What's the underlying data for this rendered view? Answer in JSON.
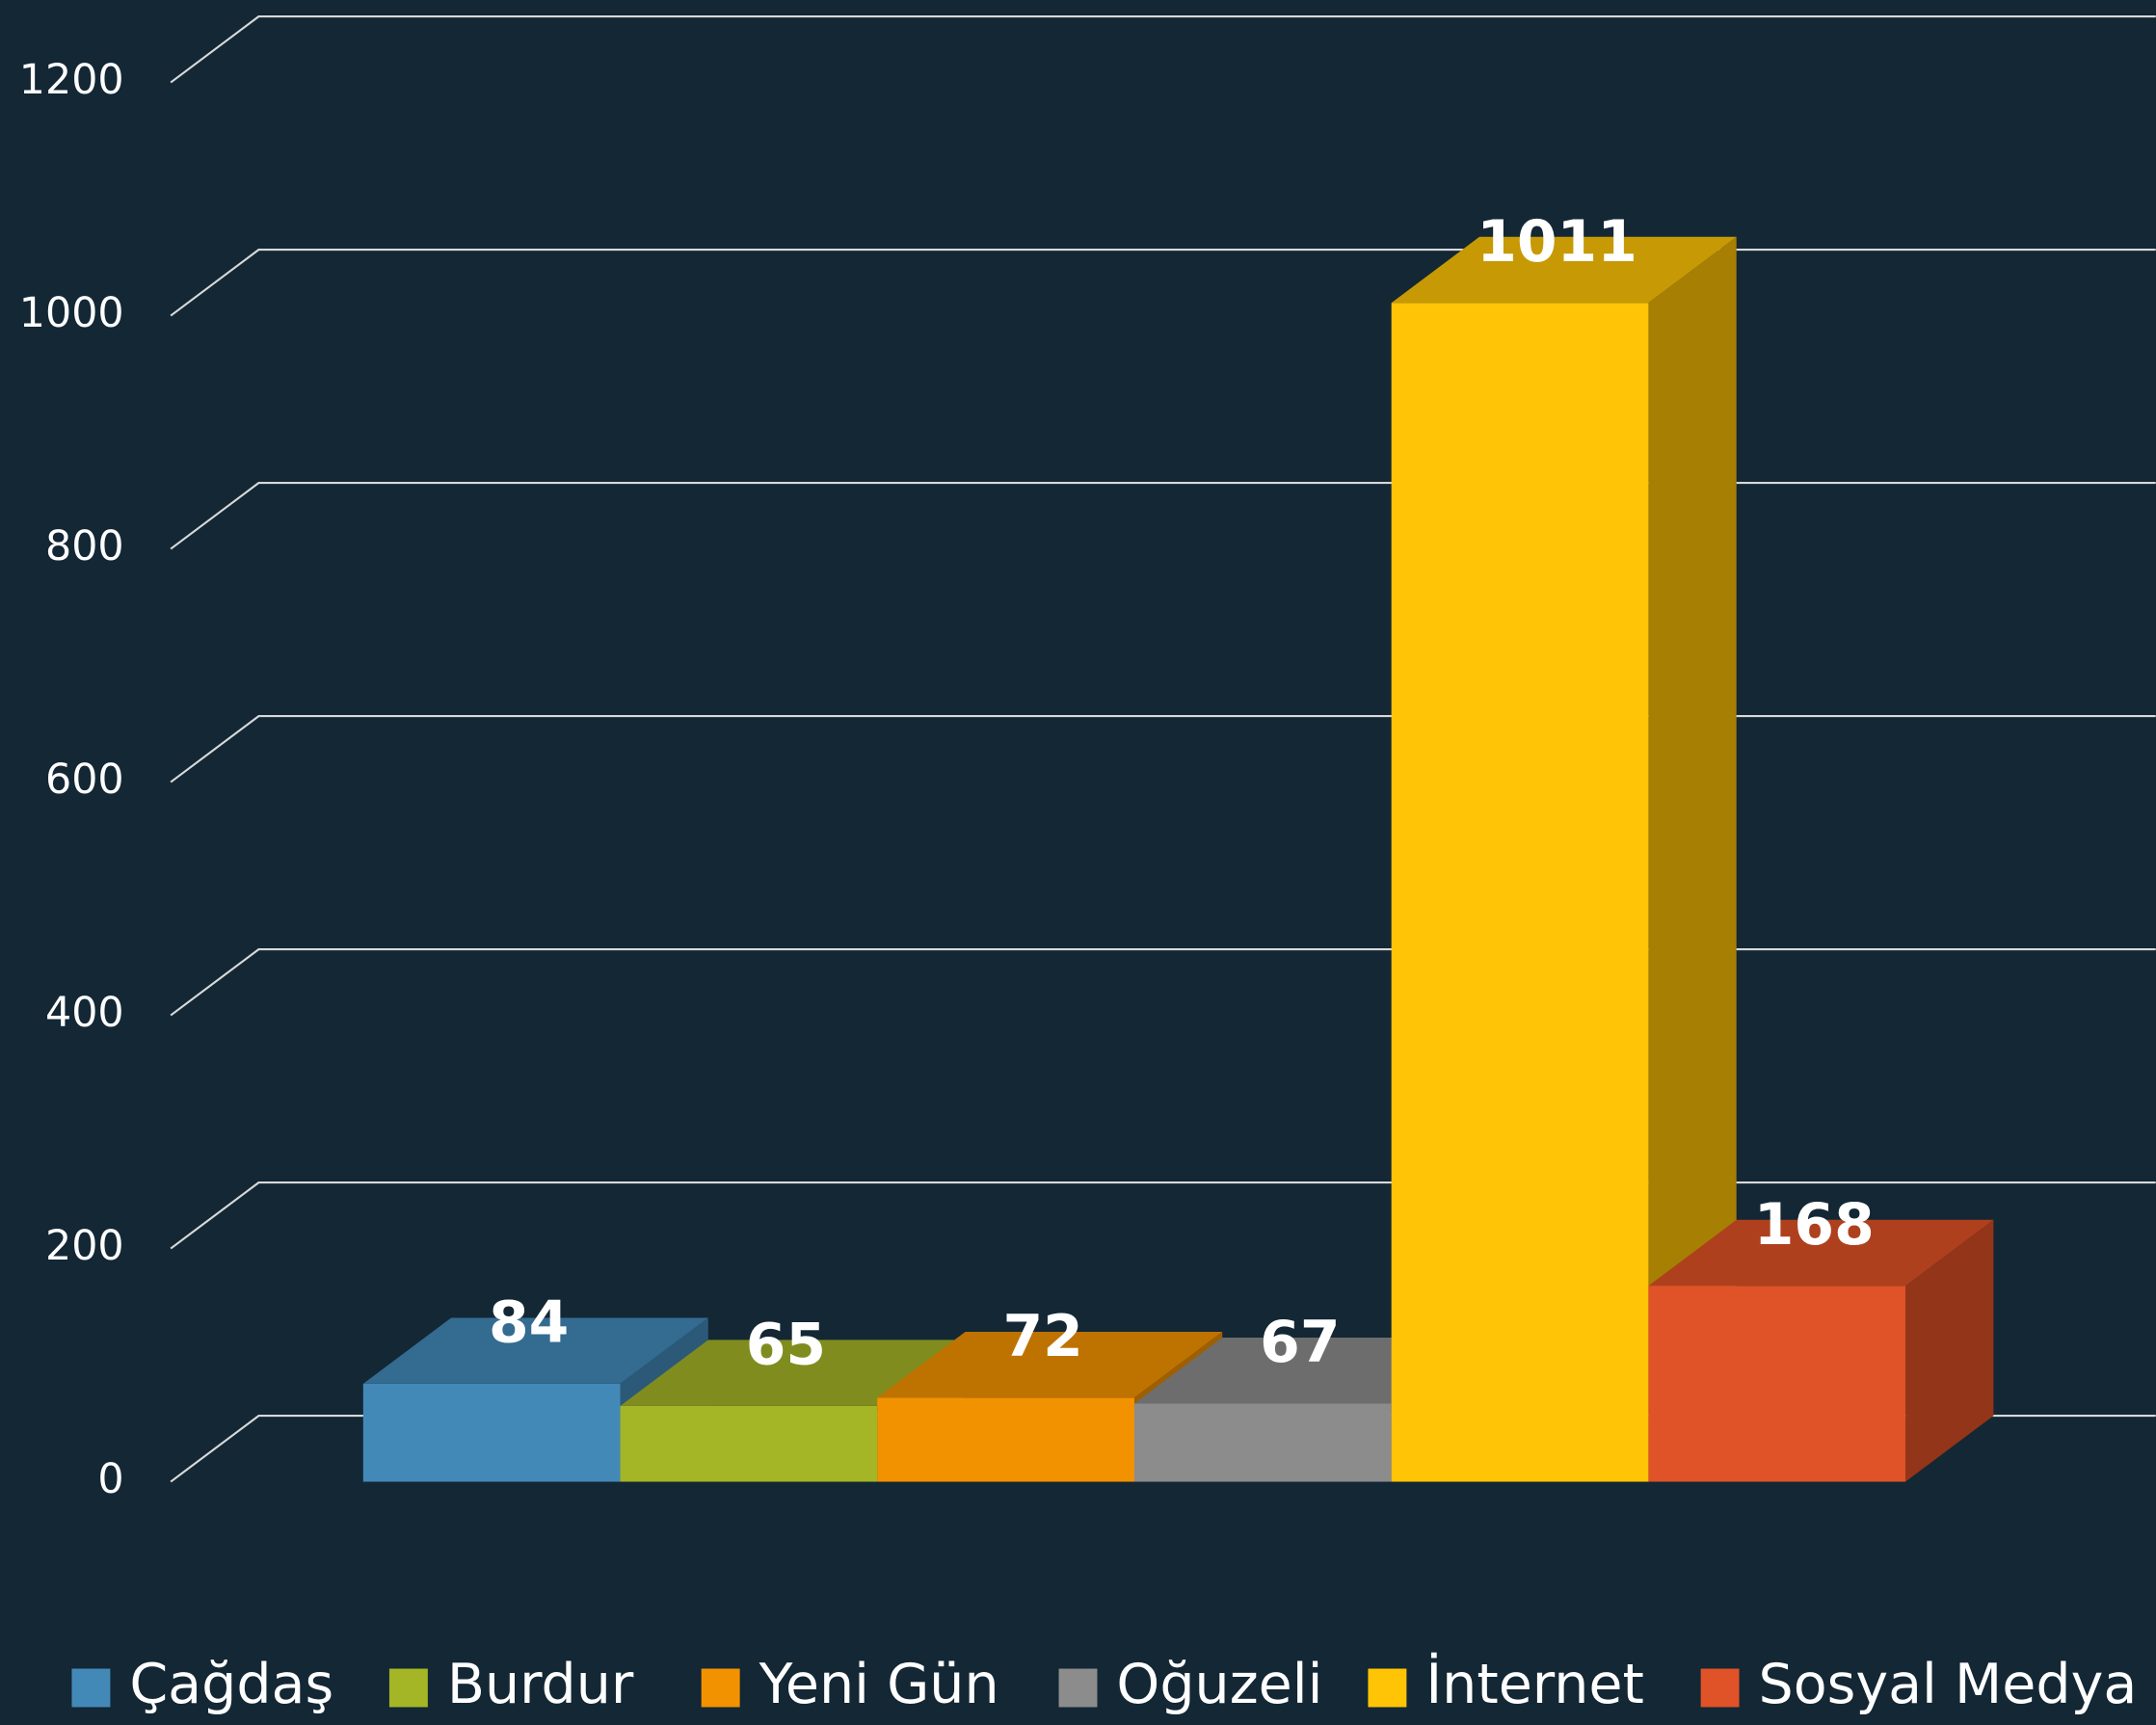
{
  "chart_data": {
    "type": "bar3d",
    "series": [
      {
        "name": "Çağdaş",
        "color": "#4389b8",
        "values": [
          84
        ]
      },
      {
        "name": "Burdur",
        "color": "#a4b526",
        "values": [
          65
        ]
      },
      {
        "name": "Yeni Gün",
        "color": "#f39200",
        "values": [
          72
        ]
      },
      {
        "name": "Oğuzeli",
        "color": "#8c8c8c",
        "values": [
          67
        ]
      },
      {
        "name": "İnternet",
        "color": "#ffc405",
        "values": [
          1011
        ]
      },
      {
        "name": "Sosyal Medya",
        "color": "#e05227",
        "values": [
          168
        ]
      }
    ],
    "ylim": [
      0,
      1200
    ],
    "yticks": [
      0,
      200,
      400,
      600,
      800,
      1000,
      1200
    ],
    "grid": true,
    "legend": "bottom"
  }
}
